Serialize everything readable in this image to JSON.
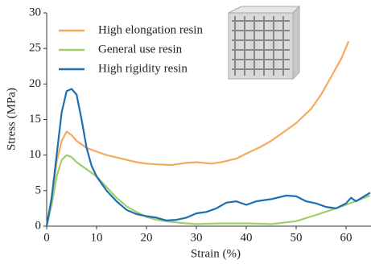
{
  "chart_data": {
    "type": "line",
    "x_label": "Strain (%)",
    "y_label": "Stress (MPa)",
    "xlim": [
      0,
      65
    ],
    "ylim": [
      0,
      30
    ],
    "xticks": [
      0,
      10,
      20,
      30,
      40,
      50,
      60
    ],
    "yticks": [
      0,
      5,
      10,
      15,
      20,
      25,
      30
    ],
    "grid": false,
    "legend": "upper left",
    "series": [
      {
        "name": "High elongation resin",
        "color": "#f5aa5c",
        "x": [
          0,
          1,
          2,
          3,
          4,
          5,
          6,
          8,
          10,
          12,
          15,
          18,
          20,
          22,
          25,
          28,
          30,
          33,
          35,
          38,
          40,
          43,
          45,
          48,
          50,
          53,
          55,
          57,
          59,
          60.5
        ],
        "values": [
          0,
          4,
          9,
          12,
          13.3,
          12.8,
          12,
          11,
          10.5,
          10,
          9.5,
          9,
          8.8,
          8.7,
          8.6,
          8.9,
          9,
          8.8,
          9,
          9.5,
          10.2,
          11.2,
          12,
          13.5,
          14.5,
          16.5,
          18.5,
          21,
          23.5,
          26
        ]
      },
      {
        "name": "General use resin",
        "color": "#9fcf6a",
        "x": [
          0,
          1,
          2,
          3,
          4,
          5,
          6,
          8,
          10,
          12,
          14,
          16,
          18,
          20,
          22,
          25,
          28,
          30,
          35,
          40,
          45,
          50,
          55,
          60,
          64.8
        ],
        "values": [
          0,
          3,
          7,
          9.3,
          10,
          9.7,
          9,
          8,
          7,
          5.5,
          4,
          2.8,
          2,
          1.3,
          0.9,
          0.6,
          0.4,
          0.3,
          0.4,
          0.4,
          0.3,
          0.7,
          1.8,
          3,
          4.3
        ]
      },
      {
        "name": "High rigidity resin",
        "color": "#1f6eb0",
        "x": [
          0,
          1,
          2,
          3,
          4,
          5,
          6,
          7,
          8,
          9,
          10,
          12,
          14,
          16,
          18,
          20,
          22,
          24,
          26,
          28,
          30,
          32,
          34,
          36,
          38,
          40,
          42,
          45,
          48,
          50,
          52,
          54,
          56,
          58,
          60,
          61,
          62,
          64.8
        ],
        "values": [
          0,
          4,
          10,
          16,
          19,
          19.3,
          18.5,
          15,
          11,
          8.5,
          7,
          5,
          3.5,
          2.3,
          1.7,
          1.4,
          1.2,
          0.8,
          0.9,
          1.2,
          1.8,
          2,
          2.5,
          3.3,
          3.5,
          3,
          3.5,
          3.8,
          4.3,
          4.2,
          3.5,
          3.2,
          2.7,
          2.5,
          3.2,
          4,
          3.5,
          4.7
        ]
      }
    ]
  }
}
